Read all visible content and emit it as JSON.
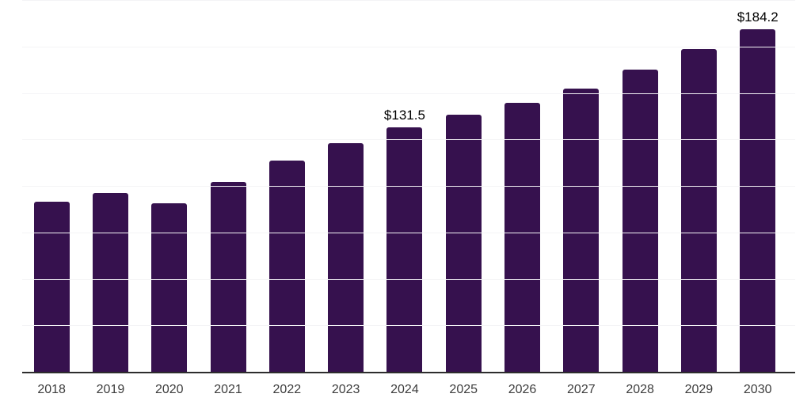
{
  "chart_data": {
    "type": "bar",
    "title": "",
    "xlabel": "",
    "ylabel": "",
    "categories": [
      "2018",
      "2019",
      "2020",
      "2021",
      "2022",
      "2023",
      "2024",
      "2025",
      "2026",
      "2027",
      "2028",
      "2029",
      "2030"
    ],
    "values": [
      91.4,
      96.3,
      90.7,
      102.2,
      113.8,
      123.1,
      131.5,
      138.1,
      144.8,
      152.4,
      162.4,
      173.5,
      184.2
    ],
    "data_labels": [
      "",
      "",
      "",
      "",
      "",
      "",
      "$131.5",
      "",
      "",
      "",
      "",
      "",
      "$184.2"
    ],
    "ylim": [
      0,
      200
    ],
    "grid_step": 25,
    "grid": true,
    "legend": false,
    "colors": {
      "bar": "#36114E",
      "axis_line": "#2d2d2d",
      "gridline": "#f4f4f6",
      "tick_label": "#3d3d3d",
      "data_label": "#000000",
      "background": "#ffffff"
    }
  }
}
